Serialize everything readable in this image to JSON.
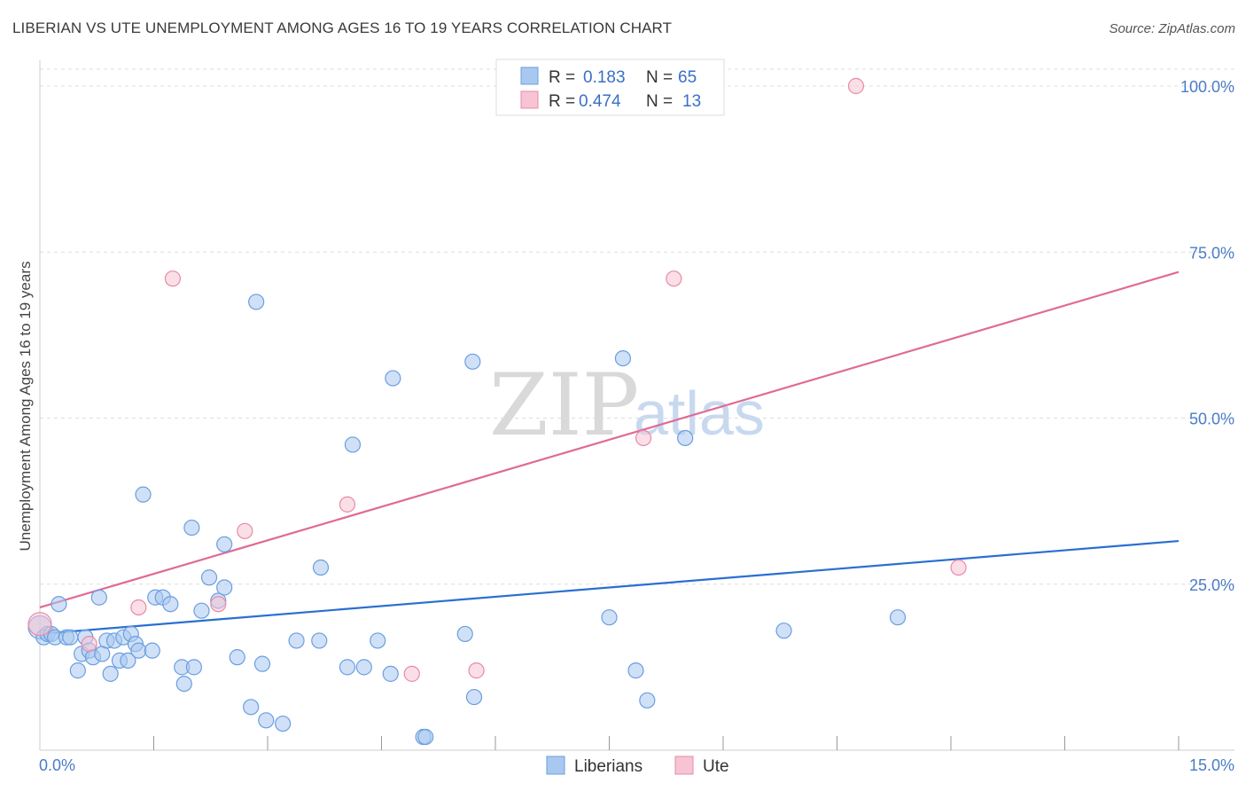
{
  "header": {
    "title": "LIBERIAN VS UTE UNEMPLOYMENT AMONG AGES 16 TO 19 YEARS CORRELATION CHART",
    "source": "Source: ZipAtlas.com"
  },
  "watermark": {
    "zip": "ZIP",
    "atlas": "atlas"
  },
  "colors": {
    "liberians_fill": "#a9c8f0",
    "liberians_stroke": "#6a9ee0",
    "liberians_line": "#2a6fd0",
    "ute_fill": "#f7c4d4",
    "ute_stroke": "#e88aa8",
    "ute_line": "#e06a95",
    "tick": "#4a7cc7",
    "grid": "#dddddd"
  },
  "legend": {
    "rows": [
      {
        "r_label": "R =",
        "r_value": "0.183",
        "n_label": "N =",
        "n_value": "65"
      },
      {
        "r_label": "R =",
        "r_value": "0.474",
        "n_label": "N =",
        "n_value": "13"
      }
    ]
  },
  "bottom_legend": {
    "series1": "Liberians",
    "series2": "Ute"
  },
  "chart_data": {
    "type": "scatter",
    "title": "LIBERIAN VS UTE UNEMPLOYMENT AMONG AGES 16 TO 19 YEARS CORRELATION CHART",
    "xlabel": "",
    "ylabel": "Unemployment Among Ages 16 to 19 years",
    "xlim": [
      0,
      15
    ],
    "ylim": [
      0,
      100
    ],
    "x_tick_labels": {
      "left": "0.0%",
      "right": "15.0%"
    },
    "y_ticks": [
      {
        "value": 25,
        "label": "25.0%"
      },
      {
        "value": 50,
        "label": "50.0%"
      },
      {
        "value": 75,
        "label": "75.0%"
      },
      {
        "value": 100,
        "label": "100.0%"
      }
    ],
    "series": [
      {
        "name": "Liberians",
        "trend": {
          "x": [
            0,
            15
          ],
          "y": [
            17.5,
            31.5
          ]
        },
        "points": [
          [
            0.0,
            18.5
          ],
          [
            0.05,
            17.0
          ],
          [
            0.1,
            17.5
          ],
          [
            0.15,
            17.5
          ],
          [
            0.2,
            17.0
          ],
          [
            0.25,
            22.0
          ],
          [
            0.35,
            17.0
          ],
          [
            0.4,
            17.0
          ],
          [
            0.5,
            12.0
          ],
          [
            0.55,
            14.5
          ],
          [
            0.6,
            17.0
          ],
          [
            0.65,
            15.0
          ],
          [
            0.7,
            14.0
          ],
          [
            0.78,
            23.0
          ],
          [
            0.82,
            14.5
          ],
          [
            0.88,
            16.5
          ],
          [
            0.93,
            11.5
          ],
          [
            0.98,
            16.5
          ],
          [
            1.05,
            13.5
          ],
          [
            1.1,
            17.0
          ],
          [
            1.16,
            13.5
          ],
          [
            1.2,
            17.5
          ],
          [
            1.26,
            16.0
          ],
          [
            1.3,
            15.0
          ],
          [
            1.36,
            38.5
          ],
          [
            1.48,
            15.0
          ],
          [
            1.52,
            23.0
          ],
          [
            1.62,
            23.0
          ],
          [
            1.72,
            22.0
          ],
          [
            1.87,
            12.5
          ],
          [
            1.9,
            10.0
          ],
          [
            2.0,
            33.5
          ],
          [
            2.03,
            12.5
          ],
          [
            2.13,
            21.0
          ],
          [
            2.23,
            26.0
          ],
          [
            2.35,
            22.5
          ],
          [
            2.43,
            24.5
          ],
          [
            2.43,
            31.0
          ],
          [
            2.6,
            14.0
          ],
          [
            2.78,
            6.5
          ],
          [
            2.85,
            67.5
          ],
          [
            2.93,
            13.0
          ],
          [
            2.98,
            4.5
          ],
          [
            3.2,
            4.0
          ],
          [
            3.38,
            16.5
          ],
          [
            3.68,
            16.5
          ],
          [
            3.7,
            27.5
          ],
          [
            4.05,
            12.5
          ],
          [
            4.12,
            46.0
          ],
          [
            4.27,
            12.5
          ],
          [
            4.45,
            16.5
          ],
          [
            4.62,
            11.5
          ],
          [
            4.65,
            56.0
          ],
          [
            5.05,
            2.0
          ],
          [
            5.08,
            2.0
          ],
          [
            5.6,
            17.5
          ],
          [
            5.7,
            58.5
          ],
          [
            5.72,
            8.0
          ],
          [
            7.5,
            20.0
          ],
          [
            7.68,
            59.0
          ],
          [
            7.85,
            12.0
          ],
          [
            8.0,
            7.5
          ],
          [
            8.5,
            47.0
          ],
          [
            9.8,
            18.0
          ],
          [
            11.3,
            20.0
          ]
        ]
      },
      {
        "name": "Ute",
        "trend": {
          "x": [
            0,
            15
          ],
          "y": [
            21.5,
            72.0
          ]
        },
        "points": [
          [
            0.0,
            19.0
          ],
          [
            0.65,
            16.0
          ],
          [
            1.3,
            21.5
          ],
          [
            1.75,
            71.0
          ],
          [
            2.35,
            22.0
          ],
          [
            2.7,
            33.0
          ],
          [
            4.05,
            37.0
          ],
          [
            4.9,
            11.5
          ],
          [
            5.75,
            12.0
          ],
          [
            7.95,
            47.0
          ],
          [
            8.35,
            71.0
          ],
          [
            10.75,
            100.0
          ],
          [
            12.1,
            27.5
          ]
        ]
      }
    ]
  }
}
